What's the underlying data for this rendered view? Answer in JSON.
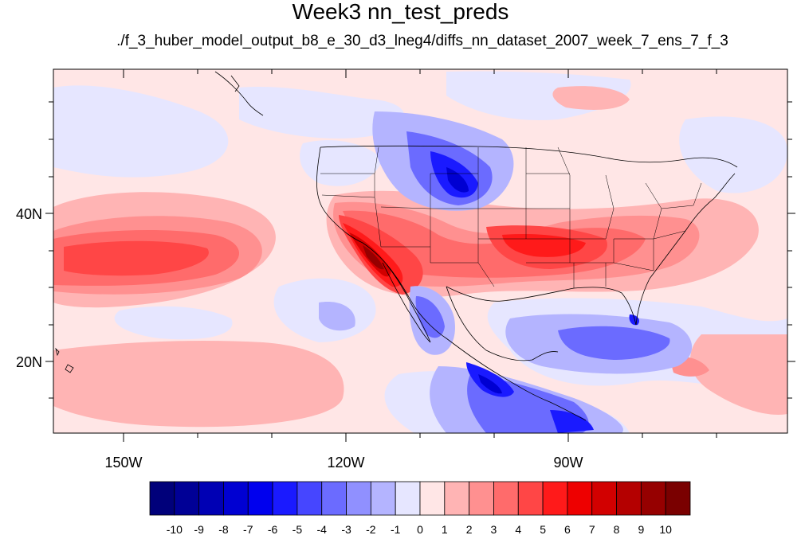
{
  "title": "Week3 nn_test_preds",
  "subtitle": "./f_3_huber_model_output_b8_e_30_d3_lneg4/diffs_nn_dataset_2007_week_7_ens_7_f_3",
  "map": {
    "lat_labels": [
      "40N",
      "20N"
    ],
    "lon_labels": [
      "150W",
      "120W",
      "90W"
    ],
    "lat_range": [
      10,
      59
    ],
    "lon_range": [
      -160,
      -59
    ]
  },
  "colorbar": {
    "labels": [
      "-10",
      "-9",
      "-8",
      "-7",
      "-6",
      "-5",
      "-4",
      "-3",
      "-2",
      "-1",
      "0",
      "1",
      "2",
      "3",
      "4",
      "5",
      "6",
      "7",
      "8",
      "9",
      "10"
    ],
    "colors": [
      "#00007a",
      "#000096",
      "#0000b4",
      "#0000d2",
      "#0000ee",
      "#1a1aff",
      "#4646ff",
      "#6b6bff",
      "#9090ff",
      "#b4b4ff",
      "#e6e6ff",
      "#ffe6e6",
      "#ffb4b4",
      "#ff9090",
      "#ff6b6b",
      "#ff4646",
      "#ff1a1a",
      "#ee0000",
      "#d20000",
      "#b40000",
      "#960000",
      "#7a0000"
    ]
  }
}
